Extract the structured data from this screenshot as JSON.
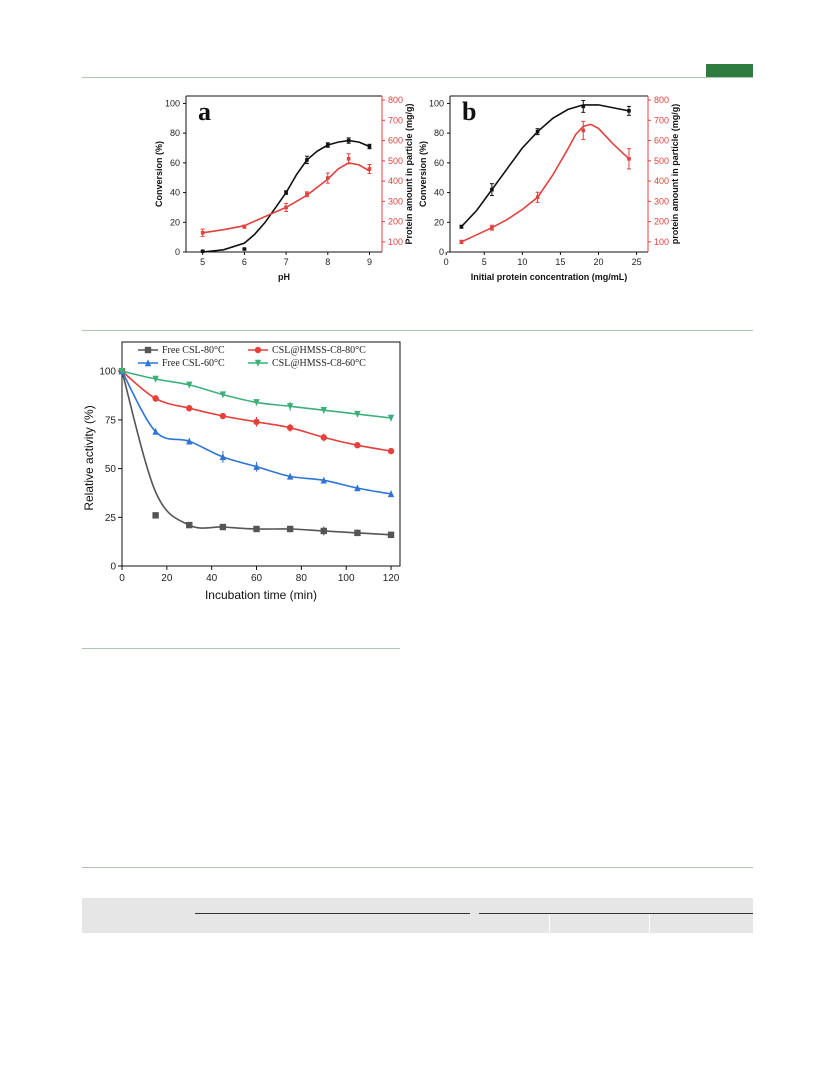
{
  "page": {
    "accent": "#2e7d3e",
    "rule_color": "#a9c8ad"
  },
  "chart_data": [
    {
      "panel_label": "a",
      "type": "line",
      "xlabel": "pH",
      "ylabel": "Conversion (%)",
      "y2label": "Protein amount in particle (mg/g)",
      "xlim": [
        4.6,
        9.3
      ],
      "ylim": [
        0,
        105
      ],
      "y2lim": [
        50,
        820
      ],
      "xticks": [
        5,
        6,
        7,
        8,
        9
      ],
      "yticks": [
        0,
        20,
        40,
        60,
        80,
        100
      ],
      "y2ticks": [
        100,
        200,
        300,
        400,
        500,
        600,
        700,
        800
      ],
      "series": [
        {
          "color": "#111111",
          "axis": "left",
          "x": [
            5,
            6,
            7,
            7.5,
            8,
            8.5,
            9
          ],
          "y": [
            0.5,
            2,
            40,
            62,
            72,
            75,
            71
          ],
          "err": [
            0.5,
            0.5,
            1.2,
            2.5,
            1.5,
            1.8,
            1.5
          ],
          "fit_x": [
            5,
            5.5,
            6,
            6.25,
            6.5,
            6.75,
            7,
            7.25,
            7.5,
            7.75,
            8,
            8.25,
            8.5,
            8.75,
            9
          ],
          "fit_y": [
            0,
            1.5,
            6,
            12,
            20,
            30,
            40,
            52,
            62,
            68,
            72,
            74,
            75,
            74,
            71
          ]
        },
        {
          "color": "#e0423e",
          "axis": "right",
          "x": [
            5,
            6,
            7,
            7.5,
            8,
            8.5,
            9
          ],
          "y": [
            145,
            175,
            270,
            335,
            415,
            510,
            460
          ],
          "err": [
            18,
            8,
            20,
            12,
            25,
            25,
            22
          ],
          "fit_x": [
            5,
            5.5,
            6,
            6.5,
            7,
            7.5,
            8,
            8.25,
            8.5,
            8.75,
            9
          ],
          "fit_y": [
            145,
            160,
            180,
            225,
            270,
            330,
            410,
            460,
            490,
            480,
            450
          ]
        }
      ]
    },
    {
      "panel_label": "b",
      "type": "line",
      "xlabel": "Initial protein concentration (mg/mL)",
      "ylabel": "Conversion (%)",
      "y2label": "protein amount in particle (mg/g)",
      "xlim": [
        0.5,
        26.5
      ],
      "ylim": [
        0,
        105
      ],
      "y2lim": [
        50,
        820
      ],
      "xticks": [
        0,
        5,
        10,
        15,
        20,
        25
      ],
      "yticks": [
        0,
        20,
        40,
        60,
        80,
        100
      ],
      "y2ticks": [
        100,
        200,
        300,
        400,
        500,
        600,
        700,
        800
      ],
      "series": [
        {
          "color": "#111111",
          "axis": "left",
          "x": [
            2,
            6,
            12,
            18,
            24
          ],
          "y": [
            17,
            42,
            81,
            98,
            95
          ],
          "err": [
            1,
            4,
            2,
            4,
            3
          ],
          "fit_x": [
            2,
            4,
            6,
            8,
            10,
            12,
            14,
            16,
            18,
            20,
            22,
            24
          ],
          "fit_y": [
            17,
            28,
            42,
            56,
            70,
            81,
            90,
            96,
            99,
            99,
            97,
            95
          ]
        },
        {
          "color": "#e0423e",
          "axis": "right",
          "x": [
            2,
            6,
            12,
            18,
            24
          ],
          "y": [
            100,
            170,
            320,
            650,
            510
          ],
          "err": [
            8,
            12,
            25,
            45,
            50
          ],
          "fit_x": [
            2,
            4,
            6,
            8,
            10,
            12,
            14,
            16,
            17,
            18,
            19,
            20,
            22,
            24
          ],
          "fit_y": [
            100,
            135,
            170,
            210,
            260,
            320,
            430,
            560,
            630,
            670,
            680,
            660,
            580,
            510
          ]
        }
      ]
    },
    {
      "type": "line",
      "xlabel": "Incubation time (min)",
      "ylabel": "Relative activity (%)",
      "xlim": [
        0,
        124
      ],
      "ylim": [
        0,
        115
      ],
      "xticks": [
        0,
        20,
        40,
        60,
        80,
        100,
        120
      ],
      "yticks": [
        0,
        25,
        50,
        75,
        100
      ],
      "legend_position": "top",
      "series": [
        {
          "name": "Free CSL-80°C",
          "color": "#555555",
          "marker": "square",
          "x": [
            0,
            15,
            30,
            45,
            60,
            75,
            90,
            105,
            120
          ],
          "y": [
            100,
            26,
            21,
            20,
            19,
            19,
            18,
            17,
            16
          ],
          "err": [
            0,
            0.6,
            0.8,
            0.6,
            0.6,
            1.2,
            1.8,
            1.2,
            1.2
          ]
        },
        {
          "name": "CSL@HMSS-C8-80°C",
          "color": "#e5403b",
          "marker": "circle",
          "x": [
            0,
            15,
            30,
            45,
            60,
            75,
            90,
            105,
            120
          ],
          "y": [
            100,
            86,
            81,
            77,
            74,
            71,
            66,
            62,
            59
          ],
          "err": [
            0,
            1.2,
            1.2,
            0.8,
            2,
            1.5,
            1.5,
            0.8,
            0.8
          ]
        },
        {
          "name": "Free CSL-60°C",
          "color": "#2f75d6",
          "marker": "triangle-up",
          "x": [
            0,
            15,
            30,
            45,
            60,
            75,
            90,
            105,
            120
          ],
          "y": [
            100,
            69,
            64,
            56,
            51,
            46,
            44,
            40,
            37
          ],
          "err": [
            0,
            0.8,
            1,
            2.5,
            2,
            0.8,
            0.8,
            0.8,
            1.2
          ]
        },
        {
          "name": "CSL@HMSS-C8-60°C",
          "color": "#3db07a",
          "marker": "triangle-down",
          "x": [
            0,
            15,
            30,
            45,
            60,
            75,
            90,
            105,
            120
          ],
          "y": [
            100,
            96,
            93,
            88,
            84,
            82,
            80,
            78,
            76
          ],
          "err": [
            0,
            0.8,
            0.8,
            1,
            1,
            1.8,
            1,
            1,
            1.2
          ]
        }
      ]
    }
  ]
}
